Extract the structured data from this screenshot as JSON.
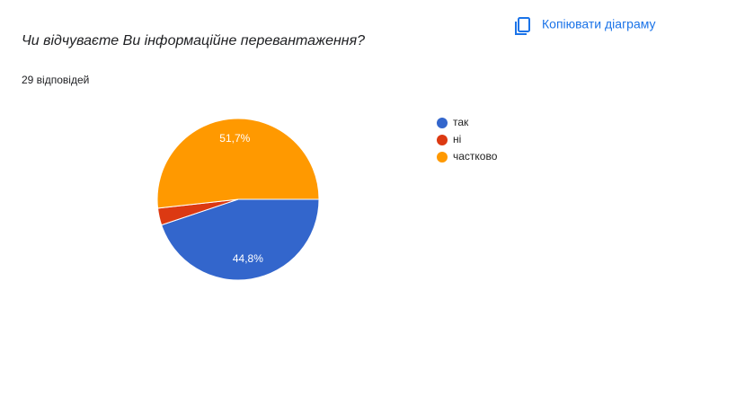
{
  "chart_data": {
    "type": "pie",
    "title": "Чи відчуваєте Ви інформаційне перевантаження?",
    "subtitle": "29 відповідей",
    "action": "Копіювати діаграму",
    "categories": [
      "так",
      "ні",
      "частково"
    ],
    "values": [
      44.8,
      3.4,
      51.7
    ],
    "value_labels": [
      "44,8%",
      null,
      "51,7%"
    ],
    "colors": [
      "#3366cc",
      "#dc3912",
      "#ff9900"
    ],
    "legend": "right"
  }
}
